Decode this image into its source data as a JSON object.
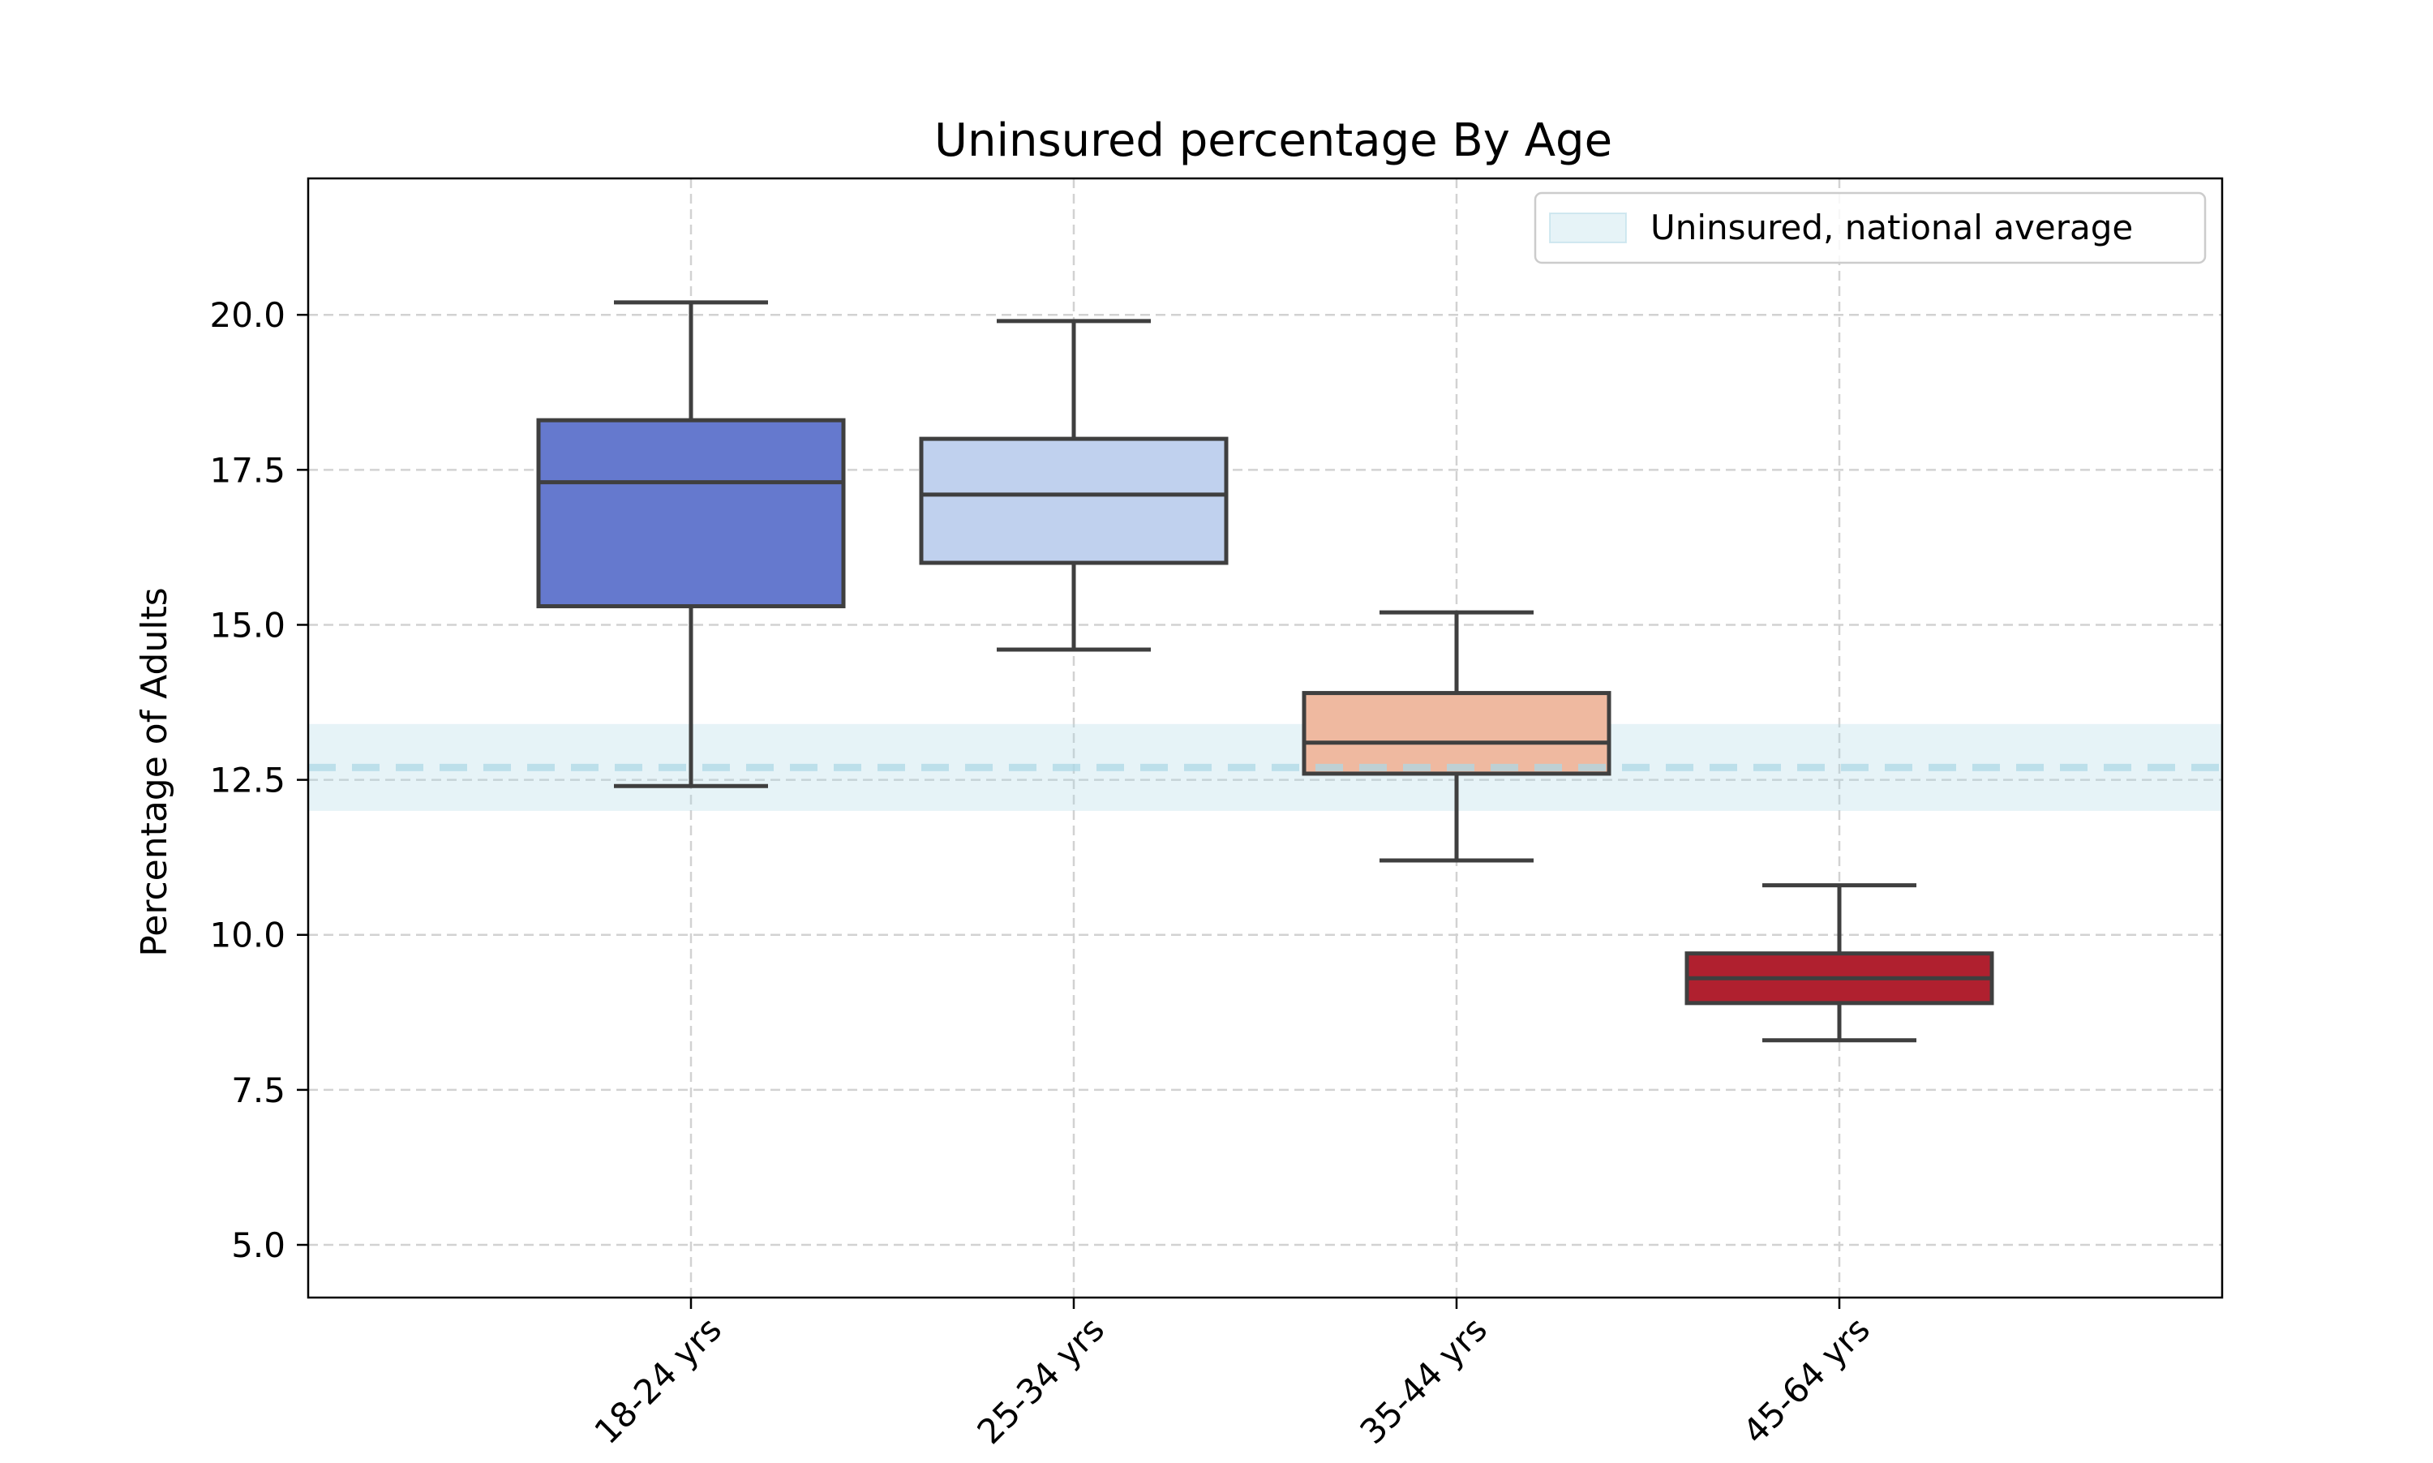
{
  "chart_data": {
    "type": "box",
    "title": "Uninsured percentage By Age",
    "xlabel": "",
    "ylabel": "Percentage of Adults",
    "categories": [
      "18-24 yrs",
      "25-34 yrs",
      "35-44 yrs",
      "45-64 yrs"
    ],
    "boxes": [
      {
        "category": "18-24 yrs",
        "whisker_low": 12.4,
        "q1": 15.3,
        "median": 17.3,
        "q3": 18.3,
        "whisker_high": 20.2,
        "color": "#6579ce"
      },
      {
        "category": "25-34 yrs",
        "whisker_low": 14.6,
        "q1": 16.0,
        "median": 17.1,
        "q3": 18.0,
        "whisker_high": 19.9,
        "color": "#c0d1ee"
      },
      {
        "category": "35-44 yrs",
        "whisker_low": 11.2,
        "q1": 12.6,
        "median": 13.1,
        "q3": 13.9,
        "whisker_high": 15.2,
        "color": "#efb9a0"
      },
      {
        "category": "45-64 yrs",
        "whisker_low": 8.3,
        "q1": 8.9,
        "median": 9.3,
        "q3": 9.7,
        "whisker_high": 10.8,
        "color": "#b0202f"
      }
    ],
    "reference": {
      "label": "Uninsured, national average",
      "value": 12.7,
      "band": [
        12.0,
        13.4
      ],
      "color": "#add8e6"
    },
    "ylim": [
      4.15,
      22.2
    ],
    "yticks": [
      5.0,
      7.5,
      10.0,
      12.5,
      15.0,
      17.5,
      20.0
    ],
    "ytick_labels": [
      "5.0",
      "7.5",
      "10.0",
      "12.5",
      "15.0",
      "17.5",
      "20.0"
    ],
    "xlim": [
      -1,
      4
    ],
    "grid": true,
    "legend_position": "top-right"
  }
}
